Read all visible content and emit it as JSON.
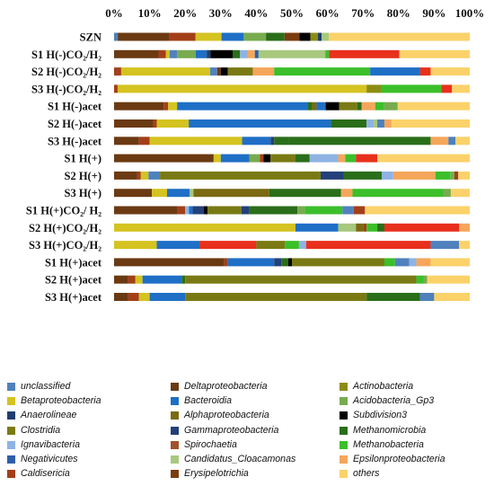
{
  "chart_data": {
    "type": "bar",
    "orientation": "horizontal",
    "stacked": true,
    "xlim": [
      0,
      100
    ],
    "x_ticks": [
      "0%",
      "10%",
      "20%",
      "30%",
      "40%",
      "50%",
      "60%",
      "70%",
      "80%",
      "90%",
      "100%"
    ],
    "categories": [
      "SZN",
      "S1 H(-)CO₂/H₂",
      "S2 H(-)CO₂/H₂",
      "S3 H(-)CO₂/H₂",
      "S1 H(-)acet",
      "S2 H(-)acet",
      "S3 H(-)acet",
      "S1 H(+)",
      "S2 H(+)",
      "S3 H(+)",
      "S1 H(+)CO₂/ H₂",
      "S2 H(+)CO₂/H₂",
      "S3 H(+)CO₂/H₂",
      "S1 H(+)acet",
      "S2 H(+)acet",
      "S3 H(+)acet"
    ],
    "series": [
      {
        "name": "unclassified",
        "color": "#4f81bd"
      },
      {
        "name": "Betaproteobacteria",
        "color": "#d4c320"
      },
      {
        "name": "Anaerolineae",
        "color": "#1f3e6e"
      },
      {
        "name": "Clostridia",
        "color": "#7a7a14"
      },
      {
        "name": "Ignavibacteria",
        "color": "#8eb3e3"
      },
      {
        "name": "Negativicutes",
        "color": "#2e5ea8"
      },
      {
        "name": "Caldisericia",
        "color": "#a33f18"
      },
      {
        "name": "Deltaproteobacteria",
        "color": "#6b3a12"
      },
      {
        "name": "Bacteroidia",
        "color": "#1f6fc6"
      },
      {
        "name": "Alphaproteobacteria",
        "color": "#7b6a12"
      },
      {
        "name": "Gammaproteobacteria",
        "color": "#23407a"
      },
      {
        "name": "Spirochaetia",
        "color": "#a0522d"
      },
      {
        "name": "Candidatus_Cloacamonas",
        "color": "#a7c87d"
      },
      {
        "name": "Erysipelotrichia",
        "color": "#7a3d0f"
      },
      {
        "name": "Actinobacteria",
        "color": "#8c8c14"
      },
      {
        "name": "Acidobacteria_Gp3",
        "color": "#78ab4f"
      },
      {
        "name": "Subdivision3",
        "color": "#000000"
      },
      {
        "name": "Methanomicrobia",
        "color": "#2a6e1a"
      },
      {
        "name": "Methanobacteria",
        "color": "#3bbf2a"
      },
      {
        "name": "Epsilonproteobacteria",
        "color": "#f5a65b"
      },
      {
        "name": "others",
        "color": "#fbd26a"
      }
    ],
    "segments": [
      [
        [
          "unclassified",
          1
        ],
        [
          "Deltaproteobacteria",
          14
        ],
        [
          "Caldisericia",
          7
        ],
        [
          "Betaproteobacteria",
          7
        ],
        [
          "Bacteroidia",
          6
        ],
        [
          "Acidobacteria_Gp3",
          6
        ],
        [
          "Methanomicrobia",
          5
        ],
        [
          "Erysipelotrichia",
          4
        ],
        [
          "Subdivision3",
          3
        ],
        [
          "Actinobacteria",
          2
        ],
        [
          "Anaerolineae",
          1
        ],
        [
          "Candidatus_Cloacamonas",
          2
        ],
        [
          "others",
          38
        ]
      ],
      [
        [
          "Deltaproteobacteria",
          12
        ],
        [
          "Caldisericia",
          2
        ],
        [
          "Betaproteobacteria",
          1
        ],
        [
          "unclassified",
          2
        ],
        [
          "Acidobacteria_Gp3",
          5
        ],
        [
          "Bacteroidia",
          3
        ],
        [
          "Anaerolineae",
          1
        ],
        [
          "Subdivision3",
          6
        ],
        [
          "Methanomicrobia",
          2
        ],
        [
          "Ignavibacteria",
          2
        ],
        [
          "Epsilonproteobacteria",
          2
        ],
        [
          "Negativicutes",
          1
        ],
        [
          "Candidatus_Cloacamonas",
          18
        ],
        [
          "Methanobacteria",
          1
        ],
        [
          "others",
          19
        ],
        [
          "others",
          19
        ]
      ],
      [
        [
          "Caldisericia",
          1
        ],
        [
          "Caldisericia",
          1
        ],
        [
          "Betaproteobacteria",
          25
        ],
        [
          "unclassified",
          2
        ],
        [
          "Deltaproteobacteria",
          1
        ],
        [
          "Subdivision3",
          2
        ],
        [
          "Clostridia",
          7
        ],
        [
          "Epsilonproteobacteria",
          6
        ],
        [
          "Methanobacteria",
          27
        ],
        [
          "Bacteroidia",
          14
        ],
        [
          "Caldisericia",
          3
        ],
        [
          "others",
          11
        ]
      ],
      [
        [
          "Caldisericia",
          1
        ],
        [
          "Betaproteobacteria",
          70
        ],
        [
          "Actinobacteria",
          4
        ],
        [
          "Methanobacteria",
          17
        ],
        [
          "Caldisericia",
          3
        ],
        [
          "others",
          5
        ]
      ],
      [
        [
          "Deltaproteobacteria",
          11
        ],
        [
          "Caldisericia",
          1
        ],
        [
          "Betaproteobacteria",
          2
        ],
        [
          "Bacteroidia",
          29
        ],
        [
          "Methanomicrobia",
          1
        ],
        [
          "Alphaproteobacteria",
          1
        ],
        [
          "Bacteroidia",
          2
        ],
        [
          "Subdivision3",
          3
        ],
        [
          "Clostridia",
          4
        ],
        [
          "Methanomicrobia",
          1
        ],
        [
          "Epsilonproteobacteria",
          3
        ],
        [
          "Methanobacteria",
          2
        ],
        [
          "Acidobacteria_Gp3",
          3
        ],
        [
          "others",
          16
        ]
      ],
      [
        [
          "Deltaproteobacteria",
          11
        ],
        [
          "Caldisericia",
          1
        ],
        [
          "Betaproteobacteria",
          9
        ],
        [
          "Bacteroidia",
          40
        ],
        [
          "Methanomicrobia",
          10
        ],
        [
          "Ignavibacteria",
          2
        ],
        [
          "Candidatus_Cloacamonas",
          1
        ],
        [
          "unclassified",
          2
        ],
        [
          "Epsilonproteobacteria",
          2
        ],
        [
          "others",
          22
        ]
      ],
      [
        [
          "Deltaproteobacteria",
          7
        ],
        [
          "Caldisericia",
          3
        ],
        [
          "Betaproteobacteria",
          26
        ],
        [
          "Bacteroidia",
          8
        ],
        [
          "Gammaproteobacteria",
          1
        ],
        [
          "Methanomicrobia",
          4
        ],
        [
          "Methanomicrobia",
          40
        ],
        [
          "Epsilonproteobacteria",
          5
        ],
        [
          "unclassified",
          2
        ],
        [
          "others",
          4
        ]
      ],
      [
        [
          "Deltaproteobacteria",
          28
        ],
        [
          "Betaproteobacteria",
          2
        ],
        [
          "Bacteroidia",
          8
        ],
        [
          "Acidobacteria_Gp3",
          3
        ],
        [
          "Caldisericia",
          1
        ],
        [
          "Subdivision3",
          2
        ],
        [
          "Clostridia",
          7
        ],
        [
          "Methanomicrobia",
          4
        ],
        [
          "Ignavibacteria",
          8
        ],
        [
          "Epsilonproteobacteria",
          2
        ],
        [
          "Methanobacteria",
          3
        ],
        [
          "Caldisericia",
          6
        ],
        [
          "others",
          26
        ]
      ],
      [
        [
          "Deltaproteobacteria",
          6
        ],
        [
          "Caldisericia",
          1
        ],
        [
          "Betaproteobacteria",
          2
        ],
        [
          "unclassified",
          3
        ],
        [
          "Clostridia",
          42
        ],
        [
          "Gammaproteobacteria",
          6
        ],
        [
          "Methanomicrobia",
          10
        ],
        [
          "Ignavibacteria",
          3
        ],
        [
          "Epsilonproteobacteria",
          11
        ],
        [
          "Methanobacteria",
          4
        ],
        [
          "Acidobacteria_Gp3",
          1
        ],
        [
          "Caldisericia",
          1
        ],
        [
          "others",
          3
        ]
      ],
      [
        [
          "Deltaproteobacteria",
          10
        ],
        [
          "Betaproteobacteria",
          4
        ],
        [
          "Bacteroidia",
          6
        ],
        [
          "Candidatus_Cloacamonas",
          1
        ],
        [
          "Alphaproteobacteria",
          20
        ],
        [
          "Methanomicrobia",
          19
        ],
        [
          "Epsilonproteobacteria",
          3
        ],
        [
          "Methanobacteria",
          24
        ],
        [
          "Acidobacteria_Gp3",
          2
        ],
        [
          "others",
          5
        ]
      ],
      [
        [
          "Deltaproteobacteria",
          17
        ],
        [
          "Caldisericia",
          2
        ],
        [
          "Ignavibacteria",
          1
        ],
        [
          "Bacteroidia",
          1
        ],
        [
          "Gammaproteobacteria",
          3
        ],
        [
          "Subdivision3",
          1
        ],
        [
          "Clostridia",
          9
        ],
        [
          "Gammaproteobacteria",
          2
        ],
        [
          "Methanomicrobia",
          13
        ],
        [
          "Acidobacteria_Gp3",
          2
        ],
        [
          "Methanobacteria",
          10
        ],
        [
          "unclassified",
          3
        ],
        [
          "Caldisericia",
          3
        ],
        [
          "others",
          28
        ]
      ],
      [
        [
          "Betaproteobacteria",
          51
        ],
        [
          "Bacteroidia",
          12
        ],
        [
          "Candidatus_Cloacamonas",
          5
        ],
        [
          "Alphaproteobacteria",
          2
        ],
        [
          "Caldisericia",
          1
        ],
        [
          "Methanobacteria",
          3
        ],
        [
          "Methanomicrobia",
          2
        ],
        [
          "Caldisericia",
          21
        ],
        [
          "Epsilonproteobacteria",
          3
        ]
      ],
      [
        [
          "Betaproteobacteria",
          12
        ],
        [
          "Bacteroidia",
          12
        ],
        [
          "Caldisericia",
          16
        ],
        [
          "Clostridia",
          8
        ],
        [
          "Methanobacteria",
          4
        ],
        [
          "Ignavibacteria",
          2
        ],
        [
          "Caldisericia",
          35
        ],
        [
          "unclassified",
          8
        ],
        [
          "others",
          3
        ]
      ],
      [
        [
          "Deltaproteobacteria",
          31
        ],
        [
          "Caldisericia",
          1
        ],
        [
          "Bacteroidia",
          13
        ],
        [
          "Gammaproteobacteria",
          2
        ],
        [
          "Methanomicrobia",
          2
        ],
        [
          "Subdivision3",
          1
        ],
        [
          "Clostridia",
          26
        ],
        [
          "Methanobacteria",
          3
        ],
        [
          "unclassified",
          4
        ],
        [
          "Ignavibacteria",
          2
        ],
        [
          "Epsilonproteobacteria",
          4
        ],
        [
          "others",
          11
        ]
      ],
      [
        [
          "Deltaproteobacteria",
          4
        ],
        [
          "Caldisericia",
          2
        ],
        [
          "Betaproteobacteria",
          2
        ],
        [
          "Bacteroidia",
          11
        ],
        [
          "Methanomicrobia",
          1
        ],
        [
          "Clostridia",
          65
        ],
        [
          "Methanobacteria",
          2
        ],
        [
          "Acidobacteria_Gp3",
          1
        ],
        [
          "others",
          12
        ]
      ],
      [
        [
          "Deltaproteobacteria",
          4
        ],
        [
          "Caldisericia",
          3
        ],
        [
          "Betaproteobacteria",
          3
        ],
        [
          "Bacteroidia",
          10
        ],
        [
          "Clostridia",
          51
        ],
        [
          "Methanomicrobia",
          15
        ],
        [
          "unclassified",
          4
        ],
        [
          "others",
          10
        ]
      ]
    ]
  },
  "legend": [
    {
      "label": "unclassified",
      "color": "#4f81bd"
    },
    {
      "label": "Betaproteobacteria",
      "color": "#d4c320"
    },
    {
      "label": "Anaerolineae",
      "color": "#1f3e6e"
    },
    {
      "label": "Clostridia",
      "color": "#7a7a14"
    },
    {
      "label": "Ignavibacteria",
      "color": "#8eb3e3"
    },
    {
      "label": "Negativicutes",
      "color": "#2e5ea8"
    },
    {
      "label": "Caldisericia",
      "color": "#a33f18"
    },
    {
      "label": "Deltaproteobacteria",
      "color": "#6b3a12"
    },
    {
      "label": "Bacteroidia",
      "color": "#1f6fc6"
    },
    {
      "label": "Alphaproteobacteria",
      "color": "#7b6a12"
    },
    {
      "label": "Gammaproteobacteria",
      "color": "#23407a"
    },
    {
      "label": "Spirochaetia",
      "color": "#a0522d"
    },
    {
      "label": "Candidatus_Cloacamonas",
      "color": "#a7c87d"
    },
    {
      "label": "Erysipelotrichia",
      "color": "#7a3d0f"
    },
    {
      "label": "Actinobacteria",
      "color": "#8c8c14"
    },
    {
      "label": "Acidobacteria_Gp3",
      "color": "#78ab4f"
    },
    {
      "label": "Subdivision3",
      "color": "#000000"
    },
    {
      "label": "Methanomicrobia",
      "color": "#2a6e1a"
    },
    {
      "label": "Methanobacteria",
      "color": "#3bbf2a"
    },
    {
      "label": "Epsilonproteobacteria",
      "color": "#f5a65b"
    },
    {
      "label": "others",
      "color": "#fbd26a"
    }
  ],
  "colors": {
    "Caldisericia_alt": "#e8301c"
  }
}
